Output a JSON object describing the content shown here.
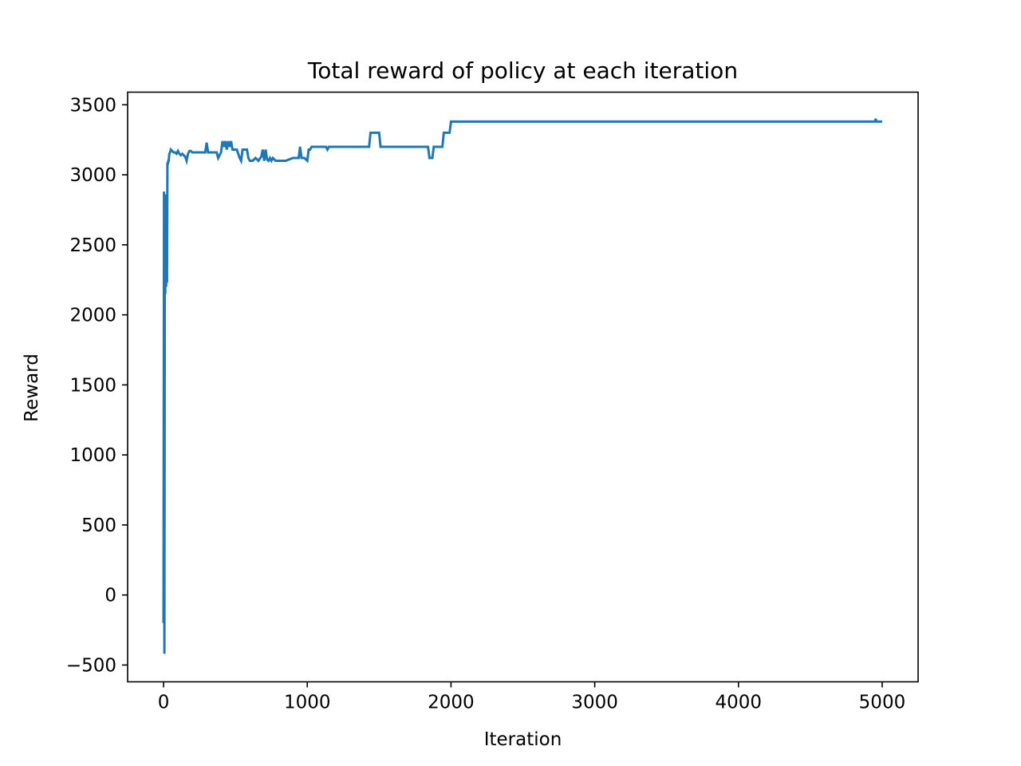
{
  "chart_data": {
    "type": "line",
    "title": "Total reward of policy at each iteration",
    "xlabel": "Iteration",
    "ylabel": "Reward",
    "xlim": [
      -250,
      5250
    ],
    "ylim": [
      -620,
      3590
    ],
    "xticks": [
      0,
      1000,
      2000,
      3000,
      4000,
      5000
    ],
    "yticks": [
      -500,
      0,
      500,
      1000,
      1500,
      2000,
      2500,
      3000,
      3500
    ],
    "grid": false,
    "line_color": "#1f77b4",
    "series": [
      {
        "x": [
          0,
          3,
          6,
          9,
          12,
          15,
          18,
          21,
          24,
          27,
          30,
          33,
          36,
          40,
          45,
          50,
          60,
          70,
          80,
          90,
          100,
          110,
          120,
          130,
          140,
          150,
          160,
          170,
          180,
          190,
          200,
          210,
          220,
          240,
          260,
          280,
          290,
          300,
          310,
          330,
          350,
          370,
          380,
          400,
          410,
          420,
          430,
          440,
          450,
          460,
          470,
          480,
          500,
          510,
          530,
          540,
          550,
          560,
          570,
          580,
          590,
          600,
          620,
          640,
          660,
          680,
          690,
          700,
          710,
          720,
          730,
          740,
          750,
          760,
          780,
          800,
          850,
          900,
          940,
          950,
          960,
          970,
          980,
          1000,
          1010,
          1020,
          1030,
          1040,
          1050,
          1100,
          1120,
          1130,
          1140,
          1150,
          1200,
          1300,
          1400,
          1430,
          1440,
          1500,
          1510,
          1600,
          1700,
          1800,
          1840,
          1850,
          1870,
          1880,
          1900,
          1940,
          1950,
          1960,
          1990,
          2000,
          2010,
          2500,
          3000,
          3500,
          4000,
          4500,
          4950,
          4955,
          4960,
          5000
        ],
        "y": [
          -200,
          2880,
          -420,
          2860,
          2150,
          2840,
          2200,
          2860,
          2230,
          3080,
          3080,
          3100,
          3100,
          3150,
          3160,
          3180,
          3170,
          3160,
          3160,
          3150,
          3170,
          3150,
          3140,
          3150,
          3140,
          3130,
          3100,
          3150,
          3170,
          3170,
          3160,
          3160,
          3160,
          3160,
          3160,
          3160,
          3160,
          3230,
          3160,
          3160,
          3160,
          3160,
          3120,
          3160,
          3240,
          3200,
          3240,
          3180,
          3240,
          3200,
          3240,
          3180,
          3180,
          3180,
          3120,
          3100,
          3180,
          3180,
          3180,
          3180,
          3120,
          3100,
          3100,
          3120,
          3100,
          3130,
          3180,
          3100,
          3180,
          3110,
          3100,
          3120,
          3100,
          3120,
          3100,
          3100,
          3100,
          3120,
          3120,
          3200,
          3120,
          3120,
          3120,
          3100,
          3180,
          3180,
          3200,
          3200,
          3200,
          3200,
          3200,
          3200,
          3180,
          3200,
          3200,
          3200,
          3200,
          3200,
          3300,
          3300,
          3200,
          3200,
          3200,
          3200,
          3200,
          3120,
          3120,
          3200,
          3200,
          3200,
          3300,
          3300,
          3300,
          3380,
          3380,
          3380,
          3380,
          3380,
          3380,
          3380,
          3380,
          3400,
          3380,
          3380
        ]
      }
    ]
  }
}
